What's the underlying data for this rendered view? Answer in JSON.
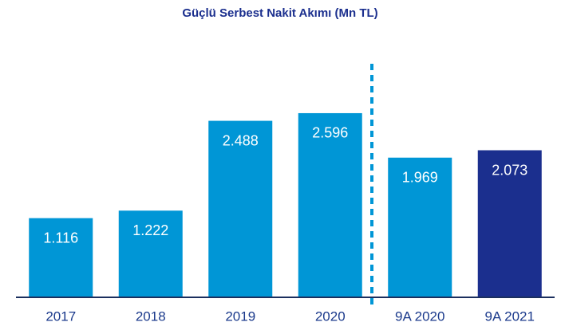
{
  "chart_data": {
    "type": "bar",
    "title": "Güçlü Serbest Nakit Akımı (Mn TL)",
    "categories": [
      "2017",
      "2018",
      "2019",
      "2020",
      "9A 2020",
      "9A 2021"
    ],
    "values": [
      1116,
      1222,
      2488,
      2596,
      1969,
      2073
    ],
    "value_labels": [
      "1.116",
      "1.222",
      "2.488",
      "2.596",
      "1.969",
      "2.073"
    ],
    "colors": [
      "#0096d6",
      "#0096d6",
      "#0096d6",
      "#0096d6",
      "#0096d6",
      "#1b2f8e"
    ],
    "ylim": [
      0,
      3000
    ]
  }
}
